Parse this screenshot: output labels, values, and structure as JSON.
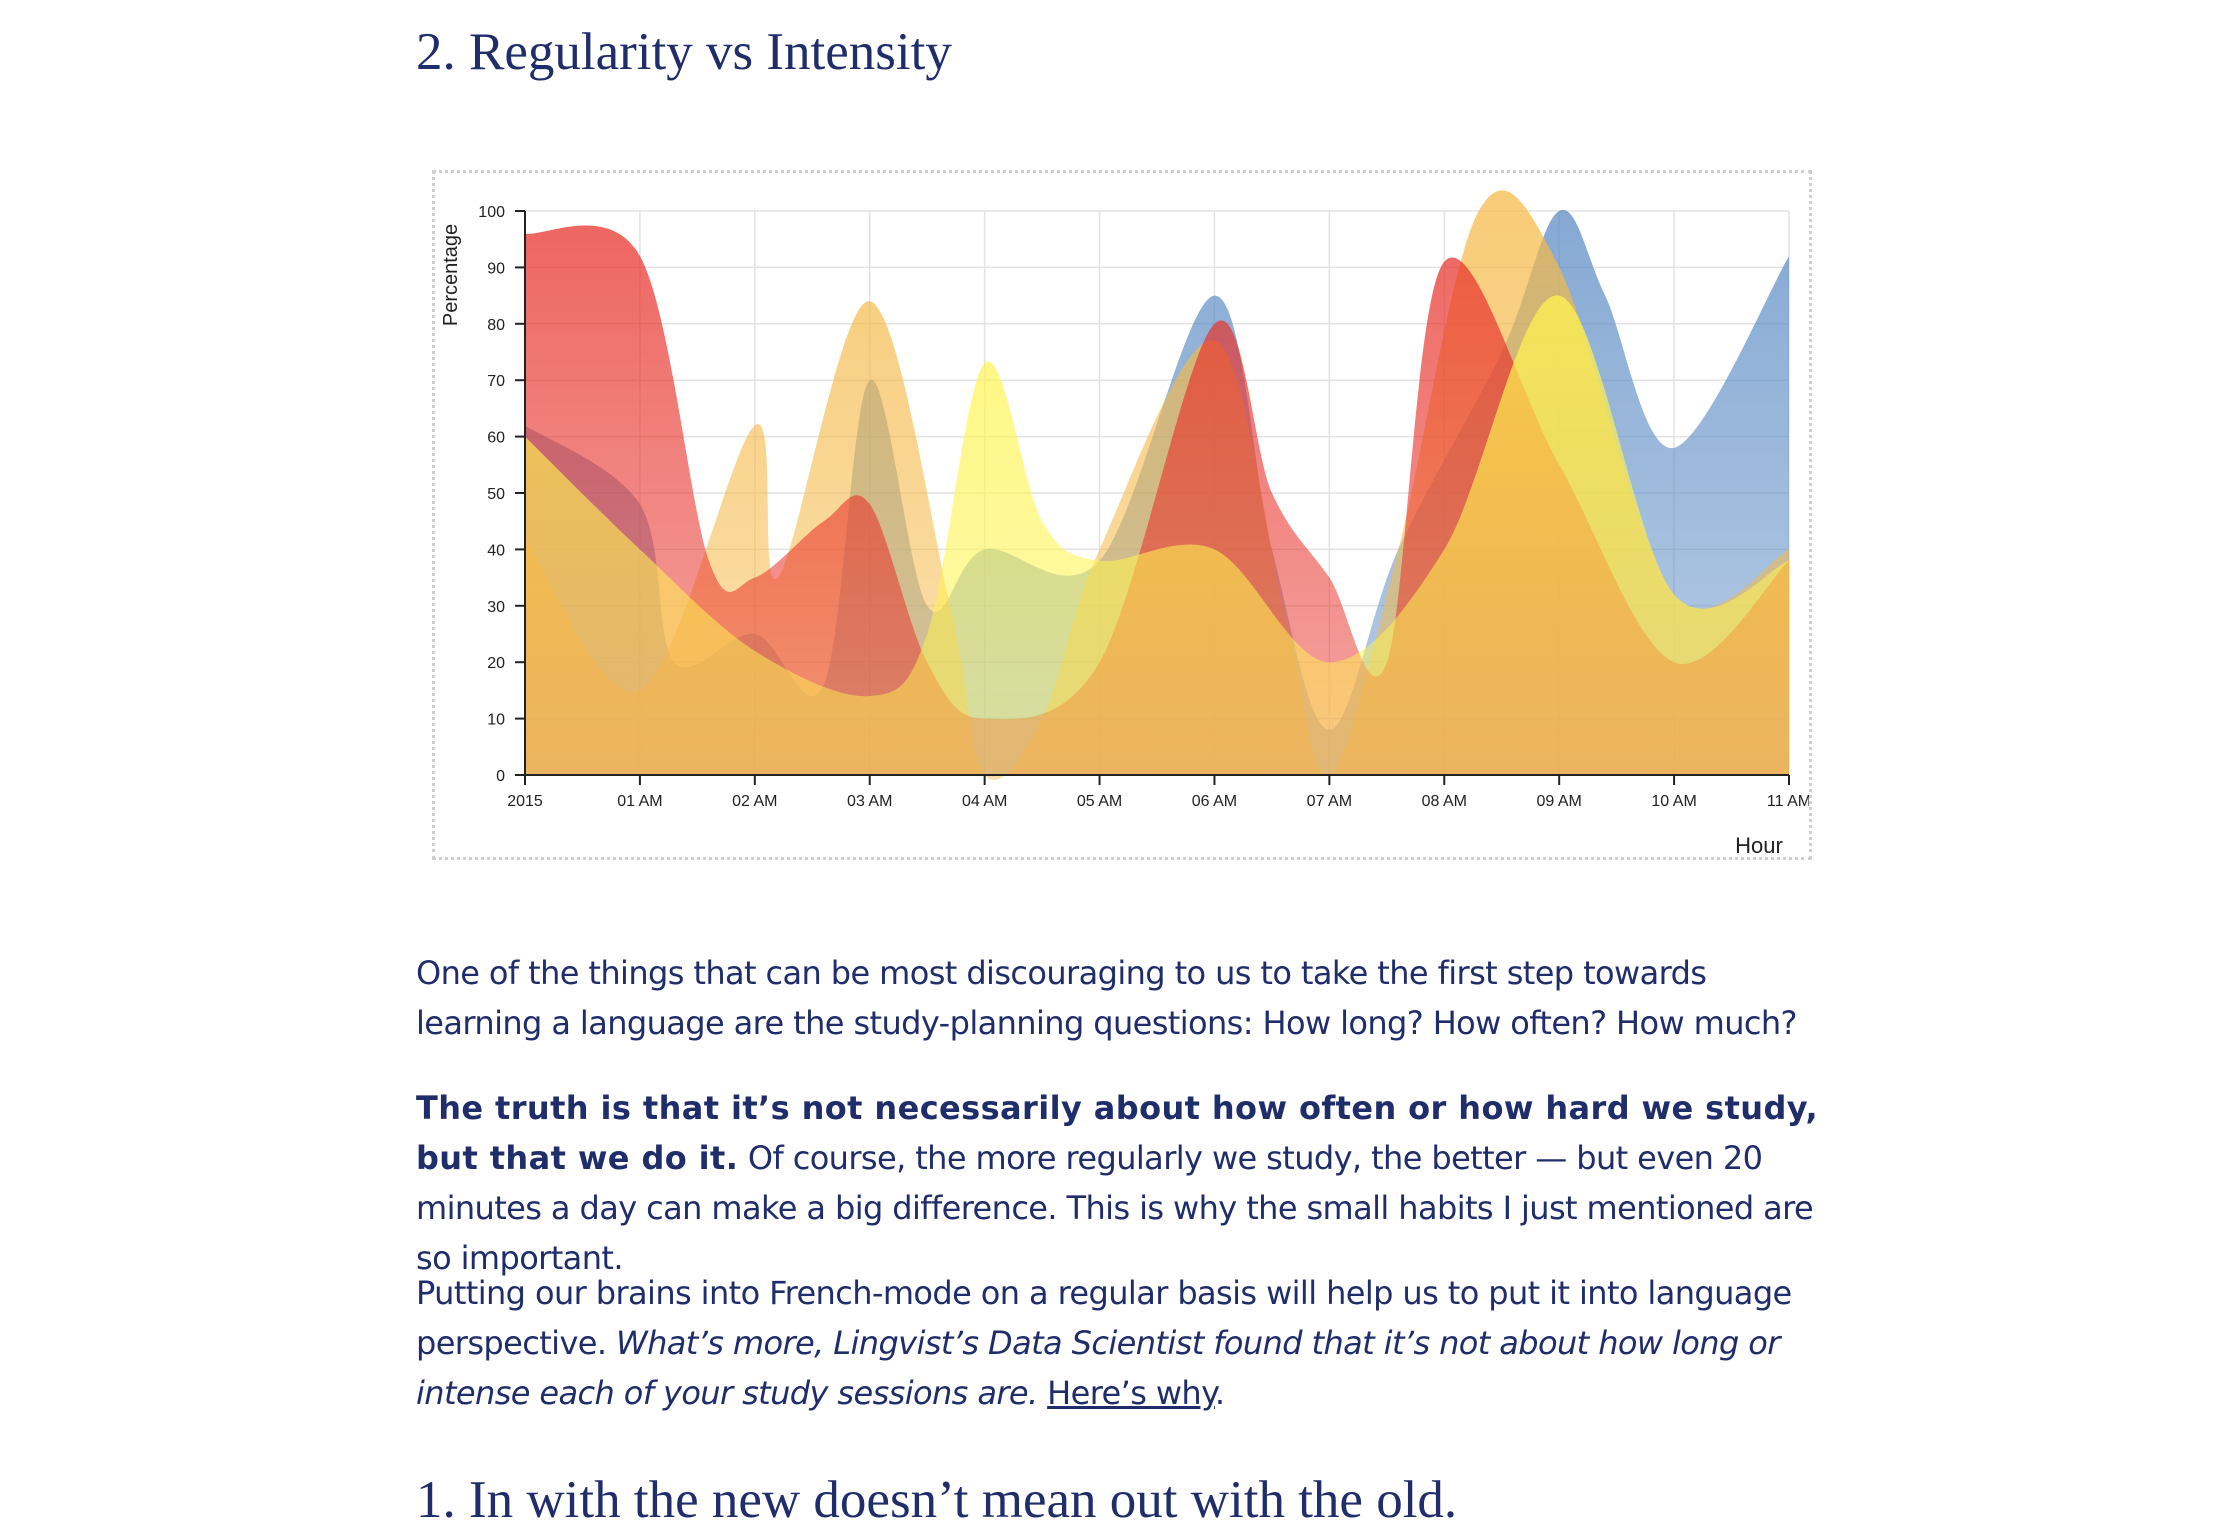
{
  "headings": {
    "section_2": "2. Regularity vs Intensity",
    "section_1": "1. In with the new doesn’t mean out with the old."
  },
  "paragraphs": {
    "p1": "One of the things that can be most discouraging to us to take the first step towards learning a language are the study-planning questions: How long? How often? How much?",
    "p2_bold": "The truth is that it’s not necessarily about how often or how hard we study, but that we do it.",
    "p2_rest": " Of course, the more regularly we study, the better — but even 20 minutes a day can make a big difference. This is why the small habits I just mentioned are so important.",
    "p3_plain": "Putting our brains into French-mode on a regular basis will help us to put it into language perspective. ",
    "p3_italic": "What’s more, Lingvist’s Data Scientist found that it’s not about how long or intense each of your study sessions are.",
    "p3_space": " ",
    "p3_link": "Here’s why",
    "p3_end": "."
  },
  "chart_data": {
    "type": "area",
    "title": "",
    "xlabel": "Hour",
    "ylabel": "Percentage",
    "ylim": [
      0,
      100
    ],
    "y_ticks": [
      0,
      10,
      20,
      30,
      40,
      50,
      60,
      70,
      80,
      90,
      100
    ],
    "categories": [
      "2015",
      "01 AM",
      "02 AM",
      "03 AM",
      "04 AM",
      "05 AM",
      "06 AM",
      "07 AM",
      "08 AM",
      "09 AM",
      "10 AM",
      "11 AM"
    ],
    "grid": true,
    "legend": "none",
    "series": [
      {
        "color": "#5b8bc4",
        "values": [
          [
            0,
            62
          ],
          [
            1,
            48
          ],
          [
            1.3,
            20
          ],
          [
            2,
            25
          ],
          [
            2.6,
            16
          ],
          [
            3,
            70
          ],
          [
            3.5,
            30
          ],
          [
            4,
            40
          ],
          [
            5,
            38
          ],
          [
            6,
            85
          ],
          [
            6.5,
            40
          ],
          [
            7,
            8
          ],
          [
            7.6,
            40
          ],
          [
            8.5,
            75
          ],
          [
            9,
            100
          ],
          [
            9.4,
            85
          ],
          [
            10,
            58
          ],
          [
            11,
            92
          ]
        ]
      },
      {
        "color": "#f5b947",
        "values": [
          [
            0,
            42
          ],
          [
            1,
            15
          ],
          [
            2,
            62
          ],
          [
            2.2,
            35
          ],
          [
            3,
            84
          ],
          [
            3.7,
            30
          ],
          [
            4,
            0
          ],
          [
            4.5,
            10
          ],
          [
            5,
            40
          ],
          [
            6,
            77
          ],
          [
            6.6,
            30
          ],
          [
            7,
            0
          ],
          [
            7.6,
            40
          ],
          [
            8.3,
            100
          ],
          [
            9,
            90
          ],
          [
            10,
            32
          ],
          [
            11,
            40
          ]
        ]
      },
      {
        "color": "#e8312a",
        "values": [
          [
            0,
            96
          ],
          [
            1,
            92
          ],
          [
            1.6,
            38
          ],
          [
            2,
            35
          ],
          [
            2.6,
            45
          ],
          [
            3,
            48
          ],
          [
            3.5,
            20
          ],
          [
            4,
            10
          ],
          [
            5,
            20
          ],
          [
            6,
            80
          ],
          [
            6.5,
            50
          ],
          [
            7,
            35
          ],
          [
            7.5,
            20
          ],
          [
            8,
            91
          ],
          [
            9,
            55
          ],
          [
            10,
            20
          ],
          [
            11,
            38
          ]
        ]
      },
      {
        "color": "#fff44f",
        "values": [
          [
            0,
            60
          ],
          [
            1,
            40
          ],
          [
            2,
            22
          ],
          [
            3,
            14
          ],
          [
            3.5,
            25
          ],
          [
            4,
            73
          ],
          [
            4.5,
            45
          ],
          [
            5,
            38
          ],
          [
            6,
            40
          ],
          [
            7,
            20
          ],
          [
            8,
            40
          ],
          [
            9,
            85
          ],
          [
            10,
            32
          ],
          [
            11,
            38
          ]
        ]
      }
    ]
  }
}
